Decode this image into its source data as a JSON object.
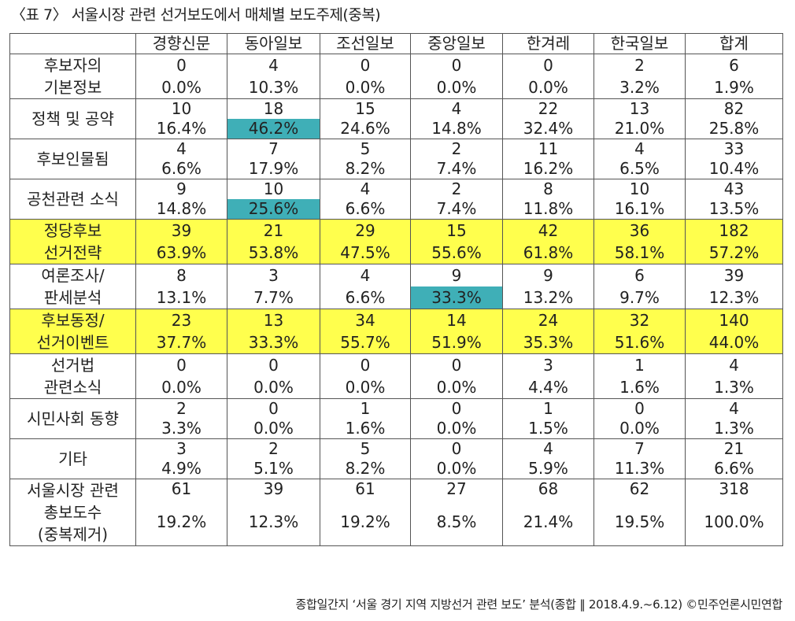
{
  "caption": "〈표 7〉 서울시장 관련 선거보도에서 매체별 보도주제(중복)",
  "columns": [
    "경향신문",
    "동아일보",
    "조선일보",
    "중앙일보",
    "한겨레",
    "한국일보",
    "합계"
  ],
  "rows": [
    {
      "label": [
        "후보자의",
        "기본정보"
      ],
      "counts": [
        "0",
        "4",
        "0",
        "0",
        "0",
        "2",
        "6"
      ],
      "pcts": [
        "0.0%",
        "10.3%",
        "0.0%",
        "0.0%",
        "0.0%",
        "3.2%",
        "1.9%"
      ],
      "highlight_row": false,
      "highlight_cells": []
    },
    {
      "label": [
        "정책 및 공약"
      ],
      "counts": [
        "10",
        "18",
        "15",
        "4",
        "22",
        "13",
        "82"
      ],
      "pcts": [
        "16.4%",
        "46.2%",
        "24.6%",
        "14.8%",
        "32.4%",
        "21.0%",
        "25.8%"
      ],
      "highlight_row": false,
      "highlight_cells": [
        1
      ]
    },
    {
      "label": [
        "후보인물됨"
      ],
      "counts": [
        "4",
        "7",
        "5",
        "2",
        "11",
        "4",
        "33"
      ],
      "pcts": [
        "6.6%",
        "17.9%",
        "8.2%",
        "7.4%",
        "16.2%",
        "6.5%",
        "10.4%"
      ],
      "highlight_row": false,
      "highlight_cells": []
    },
    {
      "label": [
        "공천관련 소식"
      ],
      "counts": [
        "9",
        "10",
        "4",
        "2",
        "8",
        "10",
        "43"
      ],
      "pcts": [
        "14.8%",
        "25.6%",
        "6.6%",
        "7.4%",
        "11.8%",
        "16.1%",
        "13.5%"
      ],
      "highlight_row": false,
      "highlight_cells": [
        1
      ]
    },
    {
      "label": [
        "정당후보",
        "선거전략"
      ],
      "counts": [
        "39",
        "21",
        "29",
        "15",
        "42",
        "36",
        "182"
      ],
      "pcts": [
        "63.9%",
        "53.8%",
        "47.5%",
        "55.6%",
        "61.8%",
        "58.1%",
        "57.2%"
      ],
      "highlight_row": true,
      "highlight_cells": []
    },
    {
      "label": [
        "여론조사/",
        "판세분석"
      ],
      "counts": [
        "8",
        "3",
        "4",
        "9",
        "9",
        "6",
        "39"
      ],
      "pcts": [
        "13.1%",
        "7.7%",
        "6.6%",
        "33.3%",
        "13.2%",
        "9.7%",
        "12.3%"
      ],
      "highlight_row": false,
      "highlight_cells": [
        3
      ]
    },
    {
      "label": [
        "후보동정/",
        "선거이벤트"
      ],
      "counts": [
        "23",
        "13",
        "34",
        "14",
        "24",
        "32",
        "140"
      ],
      "pcts": [
        "37.7%",
        "33.3%",
        "55.7%",
        "51.9%",
        "35.3%",
        "51.6%",
        "44.0%"
      ],
      "highlight_row": true,
      "highlight_cells": []
    },
    {
      "label": [
        "선거법",
        "관련소식"
      ],
      "counts": [
        "0",
        "0",
        "0",
        "0",
        "3",
        "1",
        "4"
      ],
      "pcts": [
        "0.0%",
        "0.0%",
        "0.0%",
        "0.0%",
        "4.4%",
        "1.6%",
        "1.3%"
      ],
      "highlight_row": false,
      "highlight_cells": []
    },
    {
      "label": [
        "시민사회 동향"
      ],
      "counts": [
        "2",
        "0",
        "1",
        "0",
        "1",
        "0",
        "4"
      ],
      "pcts": [
        "3.3%",
        "0.0%",
        "1.6%",
        "0.0%",
        "1.5%",
        "0.0%",
        "1.3%"
      ],
      "highlight_row": false,
      "highlight_cells": []
    },
    {
      "label": [
        "기타"
      ],
      "counts": [
        "3",
        "2",
        "5",
        "0",
        "4",
        "7",
        "21"
      ],
      "pcts": [
        "4.9%",
        "5.1%",
        "8.2%",
        "0.0%",
        "5.9%",
        "11.3%",
        "6.6%"
      ],
      "highlight_row": false,
      "highlight_cells": []
    }
  ],
  "total_row": {
    "label": [
      "서울시장 관련",
      "총보도수",
      "(중복제거)"
    ],
    "counts": [
      "61",
      "39",
      "61",
      "27",
      "68",
      "62",
      "318"
    ],
    "pcts": [
      "19.2%",
      "12.3%",
      "19.2%",
      "8.5%",
      "21.4%",
      "19.5%",
      "100.0%"
    ]
  },
  "source": "종합일간지 ‘서울 경기 지역 지방선거 관련 보도’ 분석(종합 ‖ 2018.4.9.~6.12) ©민주언론시민연합",
  "colors": {
    "highlight_row": "#ffff4d",
    "highlight_cell": "#3fafb7",
    "border": "#555555"
  }
}
